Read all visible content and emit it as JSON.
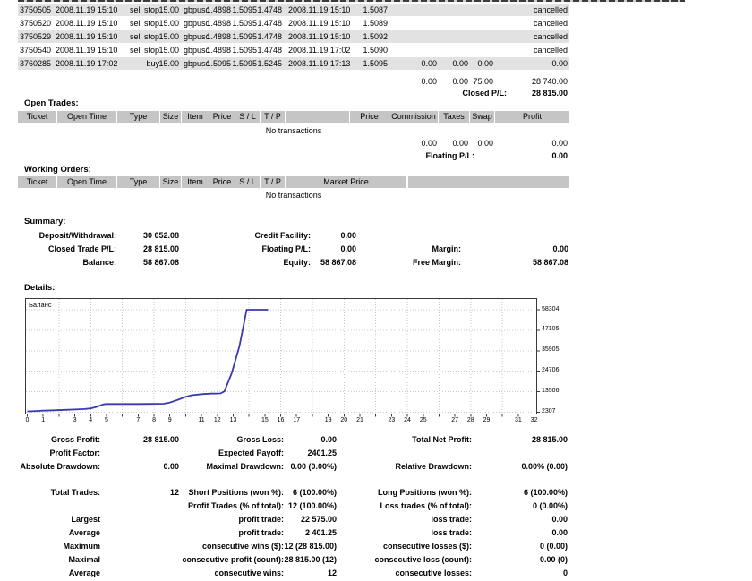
{
  "colors": {
    "table_header_bg": "#C5C5C5",
    "row_alt_bg": "#E2E2E2",
    "chart_line": "#3939AE"
  },
  "closed_trades": {
    "rows": [
      {
        "ticket": "3750505",
        "open_time": "2008.11.19 15:10",
        "type": "sell stop",
        "size": "15.00",
        "item": "gbpusd",
        "open_price": "1.4898",
        "sl": "1.5095",
        "tp": "1.4748",
        "close_time": "2008.11.19 15:10",
        "close_price": "1.5087",
        "commission": "",
        "taxes": "",
        "swap": "",
        "profit": "cancelled"
      },
      {
        "ticket": "3750520",
        "open_time": "2008.11.19 15:10",
        "type": "sell stop",
        "size": "15.00",
        "item": "gbpusd",
        "open_price": "1.4898",
        "sl": "1.5095",
        "tp": "1.4748",
        "close_time": "2008.11.19 15:10",
        "close_price": "1.5089",
        "commission": "",
        "taxes": "",
        "swap": "",
        "profit": "cancelled"
      },
      {
        "ticket": "3750529",
        "open_time": "2008.11.19 15:10",
        "type": "sell stop",
        "size": "15.00",
        "item": "gbpusd",
        "open_price": "1.4898",
        "sl": "1.5095",
        "tp": "1.4748",
        "close_time": "2008.11.19 15:10",
        "close_price": "1.5092",
        "commission": "",
        "taxes": "",
        "swap": "",
        "profit": "cancelled"
      },
      {
        "ticket": "3750540",
        "open_time": "2008.11.19 15:10",
        "type": "sell stop",
        "size": "15.00",
        "item": "gbpusd",
        "open_price": "1.4898",
        "sl": "1.5095",
        "tp": "1.4748",
        "close_time": "2008.11.19 17:02",
        "close_price": "1.5090",
        "commission": "",
        "taxes": "",
        "swap": "",
        "profit": "cancelled"
      },
      {
        "ticket": "3760285",
        "open_time": "2008.11.19 17:02",
        "type": "buy",
        "size": "15.00",
        "item": "gbpusd",
        "open_price": "1.5095",
        "sl": "1.5095",
        "tp": "1.5245",
        "close_time": "2008.11.19 17:13",
        "close_price": "1.5095",
        "commission": "0.00",
        "taxes": "0.00",
        "swap": "0.00",
        "profit": "0.00"
      }
    ],
    "totals": {
      "commission": "0.00",
      "taxes": "0.00",
      "swap": "75.00",
      "profit": "28 740.00"
    },
    "closed_pl": {
      "label": "Closed P/L:",
      "value": "28 815.00"
    }
  },
  "open_trades": {
    "title": "Open Trades:",
    "headers": [
      "Ticket",
      "Open Time",
      "Type",
      "Size",
      "Item",
      "Price",
      "S / L",
      "T / P",
      "",
      "Price",
      "Commission",
      "Taxes",
      "Swap",
      "Profit"
    ],
    "no_transactions": "No transactions",
    "totals": {
      "commission": "0.00",
      "taxes": "0.00",
      "swap": "0.00",
      "profit": "0.00"
    },
    "floating_pl": {
      "label": "Floating P/L:",
      "value": "0.00"
    }
  },
  "working_orders": {
    "title": "Working Orders:",
    "headers": [
      "Ticket",
      "Open Time",
      "Type",
      "Size",
      "Item",
      "Price",
      "S / L",
      "T / P",
      "Market Price",
      ""
    ],
    "no_transactions": "No transactions"
  },
  "summary": {
    "title": "Summary:",
    "rows": [
      {
        "l1": "Deposit/Withdrawal:",
        "v1": "30 052.08",
        "l2": "Credit Facility:",
        "v2": "0.00",
        "l3": "",
        "v3": ""
      },
      {
        "l1": "Closed Trade P/L:",
        "v1": "28 815.00",
        "l2": "Floating P/L:",
        "v2": "0.00",
        "l3": "Margin:",
        "v3": "0.00"
      },
      {
        "l1": "Balance:",
        "v1": "58 867.08",
        "l2": "Equity:",
        "v2": "58 867.08",
        "l3": "Free Margin:",
        "v3": "58 867.08"
      }
    ]
  },
  "details": {
    "title": "Details:",
    "chart_data": {
      "type": "line",
      "title": "Баланс",
      "xlabel": "",
      "ylabel": "",
      "xlim": [
        0,
        32.2
      ],
      "ylim": [
        2307,
        58304
      ],
      "grid": "dotted",
      "legend_position": "top-left",
      "line_color": "#3939AE",
      "x_ticks": [
        0,
        1,
        3,
        4,
        5,
        7,
        8,
        9,
        11,
        12,
        13,
        15,
        16,
        17,
        19,
        20,
        21,
        23,
        24,
        25,
        27,
        28,
        29,
        31,
        32
      ],
      "y_ticks": [
        2307,
        13506,
        24706,
        35905,
        47105,
        58304
      ],
      "series": [
        {
          "name": "Баланс",
          "points": [
            [
              0,
              2800
            ],
            [
              0.6,
              3000
            ],
            [
              1,
              3200
            ],
            [
              1.7,
              3400
            ],
            [
              2.4,
              3650
            ],
            [
              3,
              3800
            ],
            [
              3.6,
              4050
            ],
            [
              4,
              4400
            ],
            [
              4.4,
              5300
            ],
            [
              4.8,
              6600
            ],
            [
              5,
              6800
            ],
            [
              6,
              6800
            ],
            [
              7,
              6800
            ],
            [
              7.8,
              6850
            ],
            [
              8.6,
              6950
            ],
            [
              9,
              7600
            ],
            [
              9.5,
              9100
            ],
            [
              10,
              10700
            ],
            [
              10.4,
              11600
            ],
            [
              11,
              12200
            ],
            [
              11.6,
              12500
            ],
            [
              12.2,
              12600
            ],
            [
              12.45,
              13700
            ],
            [
              12.9,
              23500
            ],
            [
              13.4,
              38500
            ],
            [
              13.85,
              58300
            ],
            [
              15.2,
              58300
            ]
          ]
        }
      ]
    }
  },
  "stats": {
    "rows": [
      {
        "l1": "Gross Profit:",
        "v1": "28 815.00",
        "l2": "Gross Loss:",
        "v2": "0.00",
        "l3": "Total Net Profit:",
        "v3": "28 815.00"
      },
      {
        "l1": "Profit Factor:",
        "v1": "",
        "l2": "Expected Payoff:",
        "v2": "2401.25",
        "l3": "",
        "v3": ""
      },
      {
        "l1": "Absolute Drawdown:",
        "v1": "0.00",
        "l2": "Maximal Drawdown:",
        "v2": "0.00 (0.00%)",
        "l3": "Relative Drawdown:",
        "v3": "0.00% (0.00)"
      },
      {
        "l1": "Total Trades:",
        "v1": "12",
        "l2": "Short Positions (won %):",
        "v2": "6 (100.00%)",
        "l3": "Long Positions (won %):",
        "v3": "6 (100.00%)"
      },
      {
        "l1": "",
        "v1": "",
        "l2": "Profit Trades (% of total):",
        "v2": "12 (100.00%)",
        "l3": "Loss trades (% of total):",
        "v3": "0 (0.00%)"
      },
      {
        "l1": "Largest",
        "v1": "",
        "l2": "profit trade:",
        "v2": "22 575.00",
        "l3": "loss trade:",
        "v3": "0.00"
      },
      {
        "l1": "Average",
        "v1": "",
        "l2": "profit trade:",
        "v2": "2 401.25",
        "l3": "loss trade:",
        "v3": "0.00"
      },
      {
        "l1": "Maximum",
        "v1": "",
        "l2": "consecutive wins ($):",
        "v2": "12 (28 815.00)",
        "l3": "consecutive losses ($):",
        "v3": "0 (0.00)"
      },
      {
        "l1": "Maximal",
        "v1": "",
        "l2": "consecutive profit (count):",
        "v2": "28 815.00 (12)",
        "l3": "consecutive loss (count):",
        "v3": "0.00 (0)"
      },
      {
        "l1": "Average",
        "v1": "",
        "l2": "consecutive wins:",
        "v2": "12",
        "l3": "consecutive losses:",
        "v3": "0"
      }
    ]
  }
}
